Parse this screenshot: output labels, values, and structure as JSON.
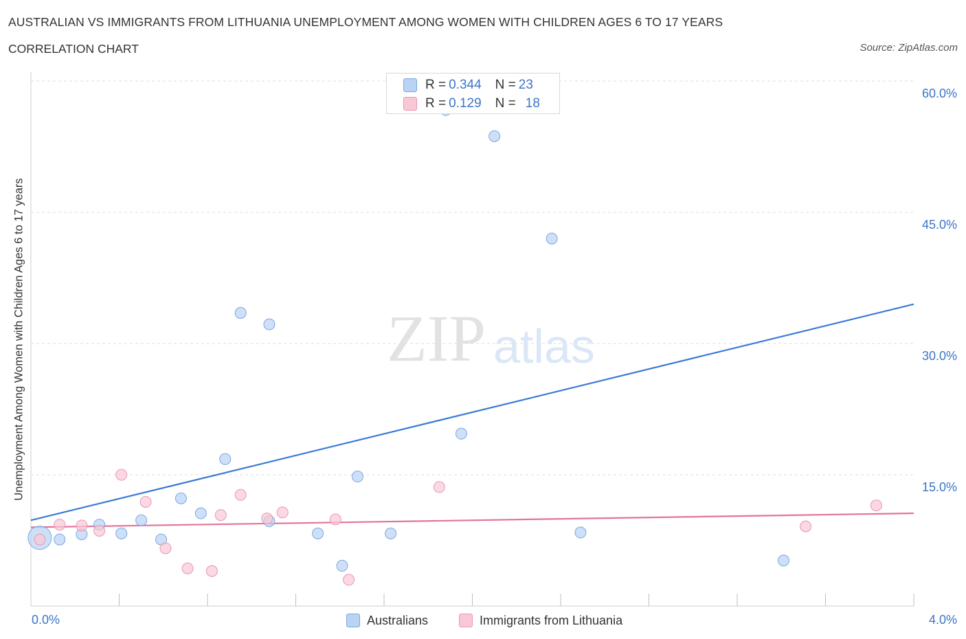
{
  "header": {
    "title": "AUSTRALIAN VS IMMIGRANTS FROM LITHUANIA UNEMPLOYMENT AMONG WOMEN WITH CHILDREN AGES 6 TO 17 YEARS",
    "subtitle": "CORRELATION CHART",
    "source": "Source: ZipAtlas.com"
  },
  "watermark": {
    "zip": "ZIP",
    "atlas": "atlas"
  },
  "legend_top": {
    "rows": [
      {
        "r_label": "R = ",
        "r_value": "0.344",
        "n_label": "N = ",
        "n_value": "23"
      },
      {
        "r_label": "R = ",
        "r_value": "0.129",
        "n_label": "N = ",
        "n_value": "18"
      }
    ]
  },
  "colors": {
    "blue_fill": "#b9d3f5",
    "blue_stroke": "#7aa6e0",
    "blue_line": "#3a7bd5",
    "pink_fill": "#f9c7d6",
    "pink_stroke": "#e897b2",
    "pink_line": "#e3739a",
    "tick_label": "#3b74c9",
    "grid": "#dcdcdc"
  },
  "chart_data": {
    "type": "scatter",
    "title": "AUSTRALIAN VS IMMIGRANTS FROM LITHUANIA UNEMPLOYMENT AMONG WOMEN WITH CHILDREN AGES 6 TO 17 YEARS",
    "xlabel": "",
    "ylabel": "Unemployment Among Women with Children Ages 6 to 17 years",
    "xlim": [
      0,
      4.0
    ],
    "ylim": [
      0,
      60
    ],
    "x_tick_labels": [
      "0.0%",
      "4.0%"
    ],
    "y_ticks": [
      15,
      30,
      45,
      60
    ],
    "y_tick_labels": [
      "15.0%",
      "30.0%",
      "45.0%",
      "60.0%"
    ],
    "legend_position": "bottom",
    "series": [
      {
        "name": "Australians",
        "color": "#b9d3f5",
        "points": [
          [
            0.04,
            7.8,
            "large"
          ],
          [
            0.13,
            7.6
          ],
          [
            0.23,
            8.2
          ],
          [
            0.31,
            9.3
          ],
          [
            0.41,
            8.3
          ],
          [
            0.5,
            9.8
          ],
          [
            0.59,
            7.6
          ],
          [
            0.68,
            12.3
          ],
          [
            0.77,
            10.6
          ],
          [
            0.88,
            16.8
          ],
          [
            0.95,
            33.5
          ],
          [
            1.08,
            32.2
          ],
          [
            1.08,
            9.7
          ],
          [
            1.3,
            8.3
          ],
          [
            1.41,
            4.6
          ],
          [
            1.48,
            14.8
          ],
          [
            1.63,
            8.3
          ],
          [
            1.88,
            56.7
          ],
          [
            1.95,
            19.7
          ],
          [
            2.1,
            53.7
          ],
          [
            2.36,
            42.0
          ],
          [
            2.49,
            8.4
          ],
          [
            3.41,
            5.2
          ]
        ],
        "trend": {
          "x": [
            0.0,
            4.0
          ],
          "y": [
            9.8,
            34.5
          ]
        }
      },
      {
        "name": "Immigrants from Lithuania",
        "color": "#f9c7d6",
        "points": [
          [
            0.04,
            7.6
          ],
          [
            0.13,
            9.3
          ],
          [
            0.23,
            9.2
          ],
          [
            0.31,
            8.6
          ],
          [
            0.41,
            15.0
          ],
          [
            0.52,
            11.9
          ],
          [
            0.61,
            6.6
          ],
          [
            0.71,
            4.3
          ],
          [
            0.82,
            4.0
          ],
          [
            0.86,
            10.4
          ],
          [
            0.95,
            12.7
          ],
          [
            1.07,
            10.0
          ],
          [
            1.14,
            10.7
          ],
          [
            1.38,
            9.9
          ],
          [
            1.44,
            3.0
          ],
          [
            1.85,
            13.6
          ],
          [
            3.51,
            9.1
          ],
          [
            3.83,
            11.5
          ]
        ],
        "trend": {
          "x": [
            0.0,
            4.0
          ],
          "y": [
            9.0,
            10.6
          ]
        }
      }
    ]
  }
}
